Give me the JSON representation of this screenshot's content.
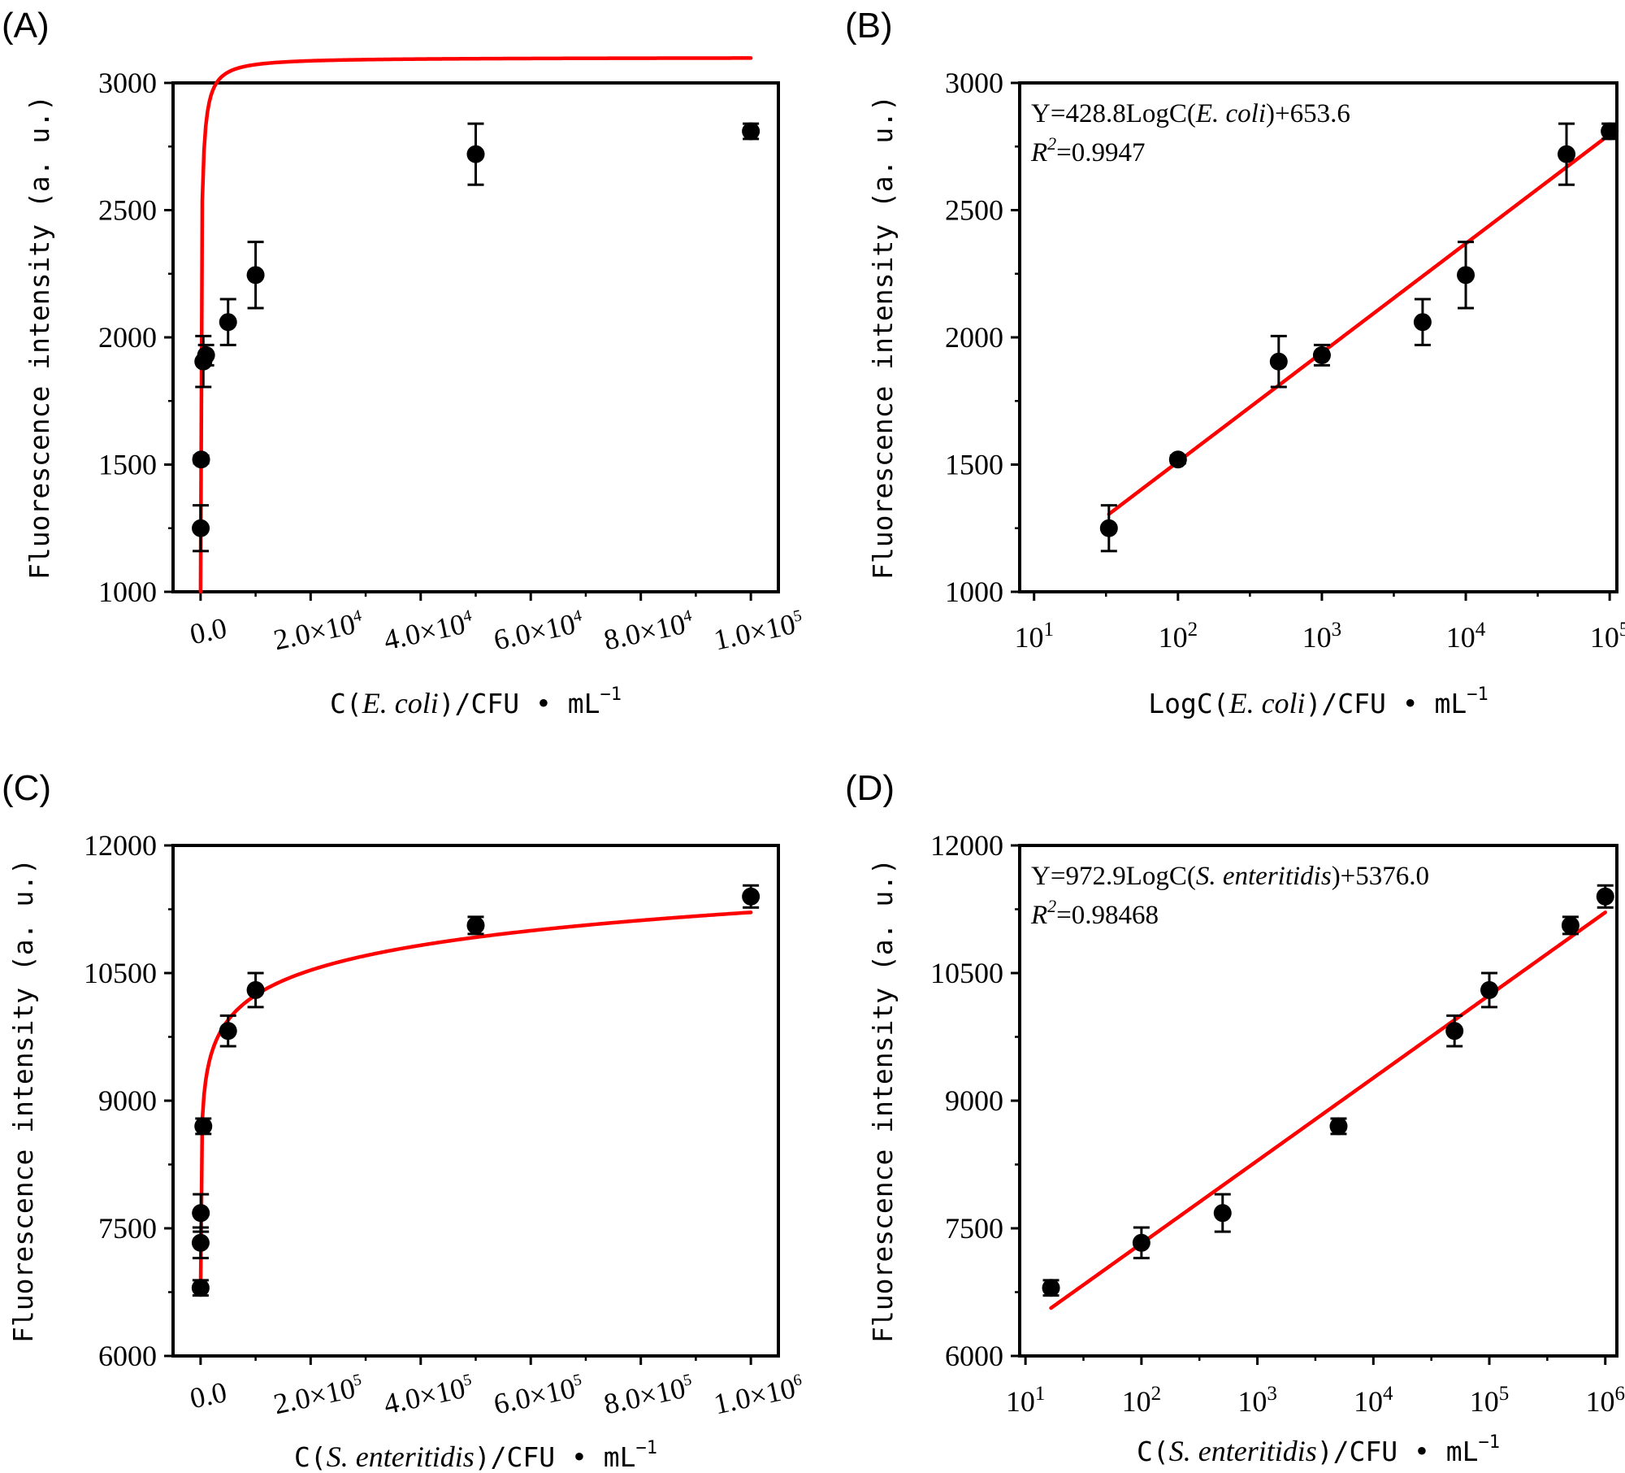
{
  "chart_data": [
    {
      "type": "scatter",
      "panel": "(A)",
      "x_scale": "linear",
      "xlim": [
        -5000,
        105000
      ],
      "ylim": [
        1000,
        3000
      ],
      "xticks": [
        0,
        20000,
        40000,
        60000,
        80000,
        100000
      ],
      "xtick_labels": [
        {
          "m": "0.0",
          "e": ""
        },
        {
          "m": "2.0×10",
          "e": "4"
        },
        {
          "m": "4.0×10",
          "e": "4"
        },
        {
          "m": "6.0×10",
          "e": "4"
        },
        {
          "m": "8.0×10",
          "e": "4"
        },
        {
          "m": "1.0×10",
          "e": "5"
        }
      ],
      "xtick_rotate": true,
      "yticks": [
        1000,
        1500,
        2000,
        2500,
        3000
      ],
      "ytick_labels": [
        "1000",
        "1500",
        "2000",
        "2500",
        "3000"
      ],
      "xlabel": {
        "pre": "C(",
        "it": "E. coli",
        "post": ")/CFU • mL",
        "sup": "−1"
      },
      "ylabel": "Fluorescence intensity (a. u.)",
      "points": [
        {
          "x": 30,
          "y": 1250,
          "err": 90
        },
        {
          "x": 100,
          "y": 1520,
          "err": 15
        },
        {
          "x": 500,
          "y": 1905,
          "err": 100
        },
        {
          "x": 1000,
          "y": 1930,
          "err": 40
        },
        {
          "x": 5000,
          "y": 2060,
          "err": 90
        },
        {
          "x": 10000,
          "y": 2245,
          "err": 130
        },
        {
          "x": 50000,
          "y": 2720,
          "err": 120
        },
        {
          "x": 100000,
          "y": 2810,
          "err": 30
        }
      ],
      "fit": {
        "kind": "log_saturation",
        "ymax": 3100,
        "k": 10500,
        "y0": 1000,
        "x0": 0,
        "x1": 100000
      },
      "equation": ""
    },
    {
      "type": "scatter",
      "panel": "(B)",
      "x_scale": "log",
      "xlim": [
        0.9,
        5.05
      ],
      "ylim": [
        1000,
        3000
      ],
      "xticks": [
        1,
        2,
        3,
        4,
        5
      ],
      "xtick_labels": [
        {
          "m": "10",
          "e": "1"
        },
        {
          "m": "10",
          "e": "2"
        },
        {
          "m": "10",
          "e": "3"
        },
        {
          "m": "10",
          "e": "4"
        },
        {
          "m": "10",
          "e": "5"
        }
      ],
      "xtick_rotate": false,
      "yticks": [
        1000,
        1500,
        2000,
        2500,
        3000
      ],
      "ytick_labels": [
        "1000",
        "1500",
        "2000",
        "2500",
        "3000"
      ],
      "xlabel": {
        "pre": "LogC(",
        "it": "E. coli",
        "post": ")/CFU • mL",
        "sup": "−1"
      },
      "ylabel": "Fluorescence intensity (a. u.)",
      "points": [
        {
          "x": 1.52,
          "y": 1250,
          "err": 90
        },
        {
          "x": 2.0,
          "y": 1520,
          "err": 15
        },
        {
          "x": 2.7,
          "y": 1905,
          "err": 100
        },
        {
          "x": 3.0,
          "y": 1930,
          "err": 40
        },
        {
          "x": 3.7,
          "y": 2060,
          "err": 90
        },
        {
          "x": 4.0,
          "y": 2245,
          "err": 130
        },
        {
          "x": 4.7,
          "y": 2720,
          "err": 120
        },
        {
          "x": 5.0,
          "y": 2810,
          "err": 30
        }
      ],
      "fit": {
        "kind": "linear",
        "slope": 428.8,
        "intercept": 653.6,
        "x0": 1.52,
        "x1": 5.0
      },
      "equation": {
        "line1_pre": "Y=428.8LogC(",
        "line1_it": "E. coli",
        "line1_post": ")+653.6",
        "r2_r": "R",
        "r2_sup": "2",
        "r2_value": "=0.9947"
      }
    },
    {
      "type": "scatter",
      "panel": "(C)",
      "x_scale": "linear",
      "xlim": [
        -50000,
        1050000
      ],
      "ylim": [
        6000,
        12000
      ],
      "xticks": [
        0,
        200000,
        400000,
        600000,
        800000,
        1000000
      ],
      "xtick_labels": [
        {
          "m": "0.0",
          "e": ""
        },
        {
          "m": "2.0×10",
          "e": "5"
        },
        {
          "m": "4.0×10",
          "e": "5"
        },
        {
          "m": "6.0×10",
          "e": "5"
        },
        {
          "m": "8.0×10",
          "e": "5"
        },
        {
          "m": "1.0×10",
          "e": "6"
        }
      ],
      "xtick_rotate": true,
      "yticks": [
        6000,
        7500,
        9000,
        10500,
        12000
      ],
      "ytick_labels": [
        "6000",
        "7500",
        "9000",
        "10500",
        "12000"
      ],
      "xlabel": {
        "pre": "C(",
        "it": "S. enteritidis",
        "post": ")/CFU • mL",
        "sup": "−1"
      },
      "ylabel": "Fluorescence intensity (a. u.)",
      "points": [
        {
          "x": 16,
          "y": 6800,
          "err": 90
        },
        {
          "x": 100,
          "y": 7330,
          "err": 180
        },
        {
          "x": 500,
          "y": 7680,
          "err": 220
        },
        {
          "x": 5000,
          "y": 8700,
          "err": 90
        },
        {
          "x": 50000,
          "y": 9820,
          "err": 180
        },
        {
          "x": 100000,
          "y": 10300,
          "err": 200
        },
        {
          "x": 500000,
          "y": 11060,
          "err": 100
        },
        {
          "x": 1000000,
          "y": 11400,
          "err": 130
        }
      ],
      "fit": {
        "kind": "linear_log",
        "slope": 972.9,
        "intercept": 5376.0,
        "shift": 10,
        "ystart": 6750,
        "x0": 0,
        "x1": 1000000
      },
      "equation": ""
    },
    {
      "type": "scatter",
      "panel": "(D)",
      "x_scale": "log",
      "xlim": [
        0.95,
        6.1
      ],
      "ylim": [
        6000,
        12000
      ],
      "xticks": [
        1,
        2,
        3,
        4,
        5,
        6
      ],
      "xtick_labels": [
        {
          "m": "10",
          "e": "1"
        },
        {
          "m": "10",
          "e": "2"
        },
        {
          "m": "10",
          "e": "3"
        },
        {
          "m": "10",
          "e": "4"
        },
        {
          "m": "10",
          "e": "5"
        },
        {
          "m": "10",
          "e": "6"
        }
      ],
      "xtick_rotate": false,
      "yticks": [
        6000,
        7500,
        9000,
        10500,
        12000
      ],
      "ytick_labels": [
        "6000",
        "7500",
        "9000",
        "10500",
        "12000"
      ],
      "xlabel": {
        "pre": "C(",
        "it": "S. enteritidis",
        "post": ")/CFU • mL",
        "sup": "−1"
      },
      "ylabel": "Fluorescence intensity (a. u.)",
      "points": [
        {
          "x": 1.22,
          "y": 6800,
          "err": 90
        },
        {
          "x": 2.0,
          "y": 7330,
          "err": 180
        },
        {
          "x": 2.7,
          "y": 7680,
          "err": 220
        },
        {
          "x": 3.7,
          "y": 8700,
          "err": 90
        },
        {
          "x": 4.7,
          "y": 9820,
          "err": 180
        },
        {
          "x": 5.0,
          "y": 10300,
          "err": 200
        },
        {
          "x": 5.7,
          "y": 11060,
          "err": 100
        },
        {
          "x": 6.0,
          "y": 11400,
          "err": 130
        }
      ],
      "fit": {
        "kind": "linear",
        "slope": 972.9,
        "intercept": 5376.0,
        "x0": 1.22,
        "x1": 6.0
      },
      "equation": {
        "line1_pre": "Y=972.9LogC(",
        "line1_it": "S. enteritidis",
        "line1_post": ")+5376.0",
        "r2_r": "R",
        "r2_sup": "2",
        "r2_value": "=0.98468"
      }
    }
  ]
}
